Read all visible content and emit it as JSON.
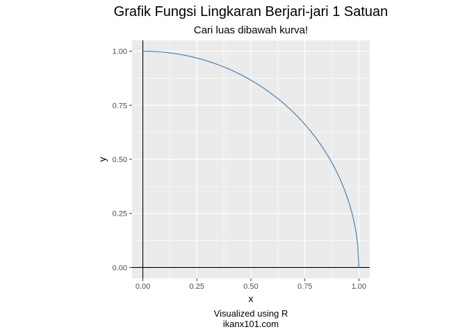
{
  "chart_data": {
    "type": "line",
    "title": "Grafik Fungsi Lingkaran Berjari-jari 1 Satuan",
    "subtitle": "Cari luas dibawah kurva!",
    "xlabel": "x",
    "ylabel": "y",
    "xlim": [
      -0.05,
      1.05
    ],
    "ylim": [
      -0.05,
      1.05
    ],
    "x_ticks": [
      "0.00",
      "0.25",
      "0.50",
      "0.75",
      "1.00"
    ],
    "y_ticks": [
      "0.00",
      "0.25",
      "0.50",
      "0.75",
      "1.00"
    ],
    "grid": true,
    "reference_lines": {
      "hline_y": 0,
      "vline_x": 0
    },
    "series": [
      {
        "color": "#4682B4",
        "function": "y = sqrt(1 - x^2)",
        "x": [
          0,
          0.1,
          0.2,
          0.3,
          0.4,
          0.5,
          0.6,
          0.7,
          0.8,
          0.9,
          0.95,
          0.99,
          1.0
        ],
        "y": [
          1,
          0.995,
          0.98,
          0.954,
          0.917,
          0.866,
          0.8,
          0.714,
          0.6,
          0.436,
          0.312,
          0.141,
          0
        ]
      }
    ],
    "caption_lines": [
      "Visualized using R",
      "ikanx101.com"
    ]
  },
  "colors": {
    "panel_background": "#EBEBEB",
    "grid_major": "#FFFFFF",
    "line": "#4682B4",
    "reference_line": "#000000"
  }
}
